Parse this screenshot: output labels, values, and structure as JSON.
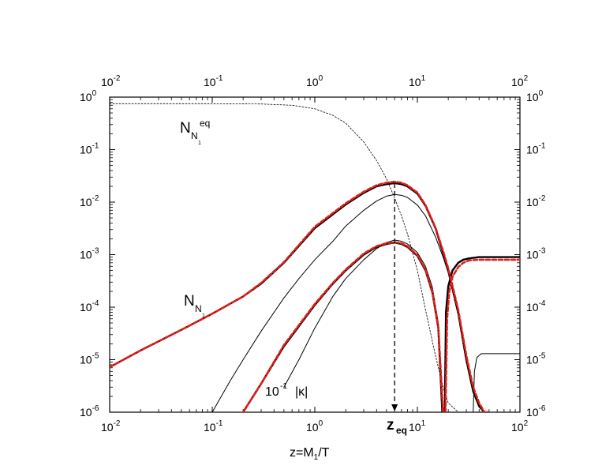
{
  "chart_data": {
    "type": "line",
    "xlabel": "z=M",
    "xlabel_sub": "1",
    "xlabel_tail": "/T",
    "xscale": "log",
    "yscale": "log",
    "xlim": [
      0.01,
      100
    ],
    "ylim": [
      1e-06,
      1
    ],
    "x_tick_labels": [
      {
        "base": "10",
        "exp": "-2"
      },
      {
        "base": "10",
        "exp": "-1"
      },
      {
        "base": "10",
        "exp": "0"
      },
      {
        "base": "10",
        "exp": "1"
      },
      {
        "base": "10",
        "exp": "2"
      }
    ],
    "y_tick_labels": [
      {
        "base": "10",
        "exp": "0"
      },
      {
        "base": "10",
        "exp": "-1"
      },
      {
        "base": "10",
        "exp": "-2"
      },
      {
        "base": "10",
        "exp": "-3"
      },
      {
        "base": "10",
        "exp": "-4"
      },
      {
        "base": "10",
        "exp": "-5"
      },
      {
        "base": "10",
        "exp": "-6"
      }
    ],
    "annotations": {
      "neq_main": "N",
      "neq_sub": "N",
      "neq_subsub": "1",
      "neq_sup": "eq",
      "n_main": "N",
      "n_sub": "N",
      "n_subsub": "1",
      "kappa_prefix": "10",
      "kappa_exp": "-1",
      "kappa_text": "|κ|",
      "zeq_main": "z",
      "zeq_sub": "eq"
    },
    "z_eq": 6.0,
    "colors": {
      "solid": "#000000",
      "dashed": "#e0201b"
    },
    "series": [
      {
        "style": "thin-dotted",
        "color": "#000000",
        "x": [
          0.01,
          0.1,
          0.3,
          0.6,
          1.0,
          1.5,
          2.0,
          3.0,
          4.0,
          5.0,
          6.0,
          7.0,
          8.0,
          10.0,
          12.0,
          15.0,
          18.0,
          20.0,
          25.0
        ],
        "y": [
          0.75,
          0.75,
          0.74,
          0.7,
          0.6,
          0.45,
          0.32,
          0.14,
          0.062,
          0.028,
          0.012,
          0.0055,
          0.0025,
          0.0005,
          9e-05,
          1.2e-05,
          2.8e-06,
          1.5e-06,
          1e-06
        ]
      },
      {
        "style": "thick",
        "color": "#000000",
        "x": [
          0.01,
          0.02,
          0.05,
          0.1,
          0.2,
          0.3,
          0.5,
          1.0,
          2.0,
          3.0,
          4.0,
          5.0,
          6.0,
          7.0,
          8.0,
          10.0,
          12.0,
          15.0,
          18.0,
          20.0,
          25.0,
          30.0,
          35.0,
          40.0,
          45.0,
          48.0
        ],
        "y": [
          7.2e-06,
          1.5e-05,
          3.7e-05,
          7.5e-05,
          0.00016,
          0.00028,
          0.0007,
          0.0032,
          0.009,
          0.015,
          0.02,
          0.022,
          0.023,
          0.022,
          0.02,
          0.0145,
          0.0085,
          0.0032,
          0.001,
          0.0005,
          8e-05,
          1e-05,
          2.5e-06,
          1.3e-06,
          1e-06,
          1e-06
        ]
      },
      {
        "style": "thin",
        "color": "#000000",
        "x": [
          0.1,
          0.15,
          0.2,
          0.3,
          0.5,
          0.7,
          1.0,
          1.5,
          2.0,
          3.0,
          4.0,
          5.0,
          6.0,
          7.0,
          8.0,
          10.0,
          12.0,
          15.0,
          18.0,
          20.0,
          25.0,
          30.0
        ],
        "y": [
          1e-06,
          4e-06,
          1e-05,
          3.5e-05,
          0.00015,
          0.00035,
          0.0008,
          0.0018,
          0.0035,
          0.007,
          0.0105,
          0.013,
          0.014,
          0.0135,
          0.0123,
          0.0088,
          0.0055,
          0.0022,
          0.00085,
          0.00045,
          7e-05,
          9e-06
        ]
      },
      {
        "style": "thick",
        "color": "#000000",
        "x": [
          0.2,
          0.3,
          0.5,
          1.0,
          1.5,
          2.0,
          3.0,
          4.0,
          5.0,
          6.0,
          7.0,
          8.0,
          10.0,
          12.0,
          14.0,
          16.0,
          17.5
        ],
        "y": [
          1e-06,
          3.5e-06,
          1.8e-05,
          0.00011,
          0.00028,
          0.0005,
          0.001,
          0.0014,
          0.0016,
          0.0017,
          0.0016,
          0.0014,
          0.00095,
          0.0005,
          0.00019,
          4e-05,
          1e-06
        ]
      },
      {
        "style": "thin",
        "color": "#000000",
        "x": [
          0.5,
          0.7,
          1.0,
          1.5,
          2.0,
          3.0,
          4.0,
          5.0,
          6.0,
          7.0,
          8.0,
          10.0,
          12.0,
          14.0,
          16.0,
          17.5
        ],
        "y": [
          3e-06,
          1e-05,
          4e-05,
          0.00016,
          0.00035,
          0.0008,
          0.0013,
          0.0017,
          0.0019,
          0.0018,
          0.0016,
          0.0011,
          0.0006,
          0.00024,
          5e-05,
          1e-06
        ]
      },
      {
        "style": "thick",
        "color": "#000000",
        "x": [
          18.5,
          19.0,
          20.0,
          22.0,
          25.0,
          28.0,
          32.0,
          40.0,
          60.0,
          100.0
        ],
        "y": [
          1e-06,
          8e-05,
          0.00025,
          0.0005,
          0.0007,
          0.0008,
          0.00085,
          0.0009,
          0.0009,
          0.0009
        ]
      },
      {
        "style": "thin",
        "color": "#000000",
        "x": [
          35.0,
          36.0,
          38.0,
          42.0,
          50.0,
          70.0,
          100.0
        ],
        "y": [
          1e-06,
          6e-06,
          1.1e-05,
          1.3e-05,
          1.3e-05,
          1.3e-05,
          1.3e-05
        ]
      },
      {
        "style": "dashed",
        "color": "#e0201b",
        "x": [
          0.01,
          0.02,
          0.05,
          0.1,
          0.2,
          0.3,
          0.5,
          1.0,
          2.0,
          3.0,
          4.0,
          5.0,
          6.0,
          7.0,
          8.0,
          10.0,
          12.0,
          15.0,
          18.0,
          20.0,
          25.0,
          30.0,
          35.0,
          40.0,
          45.0,
          48.0
        ],
        "y": [
          7.2e-06,
          1.5e-05,
          3.7e-05,
          7.5e-05,
          0.00016,
          0.00029,
          0.00072,
          0.0034,
          0.0095,
          0.0158,
          0.021,
          0.0235,
          0.0245,
          0.0235,
          0.021,
          0.0152,
          0.0088,
          0.0033,
          0.0011,
          0.00055,
          9e-05,
          1.2e-05,
          3e-06,
          1.5e-06,
          1e-06,
          1e-06
        ]
      },
      {
        "style": "dashed",
        "color": "#e0201b",
        "x": [
          0.2,
          0.3,
          0.5,
          1.0,
          1.5,
          2.0,
          3.0,
          4.0,
          5.0,
          6.0,
          7.0,
          8.0,
          10.0,
          12.0,
          14.0,
          16.0,
          17.8
        ],
        "y": [
          1e-06,
          3.5e-06,
          1.9e-05,
          0.000115,
          0.00029,
          0.00052,
          0.00105,
          0.00145,
          0.00165,
          0.00172,
          0.00165,
          0.00145,
          0.00098,
          0.00052,
          0.0002,
          4.2e-05,
          1e-06
        ]
      },
      {
        "style": "dashed",
        "color": "#e0201b",
        "x": [
          18.8,
          19.5,
          20.5,
          22.0,
          25.0,
          28.0,
          32.0,
          40.0,
          60.0,
          100.0
        ],
        "y": [
          1e-06,
          6e-05,
          0.0002,
          0.00038,
          0.00058,
          0.0007,
          0.00078,
          0.0008,
          0.0008,
          0.0008
        ]
      }
    ]
  }
}
